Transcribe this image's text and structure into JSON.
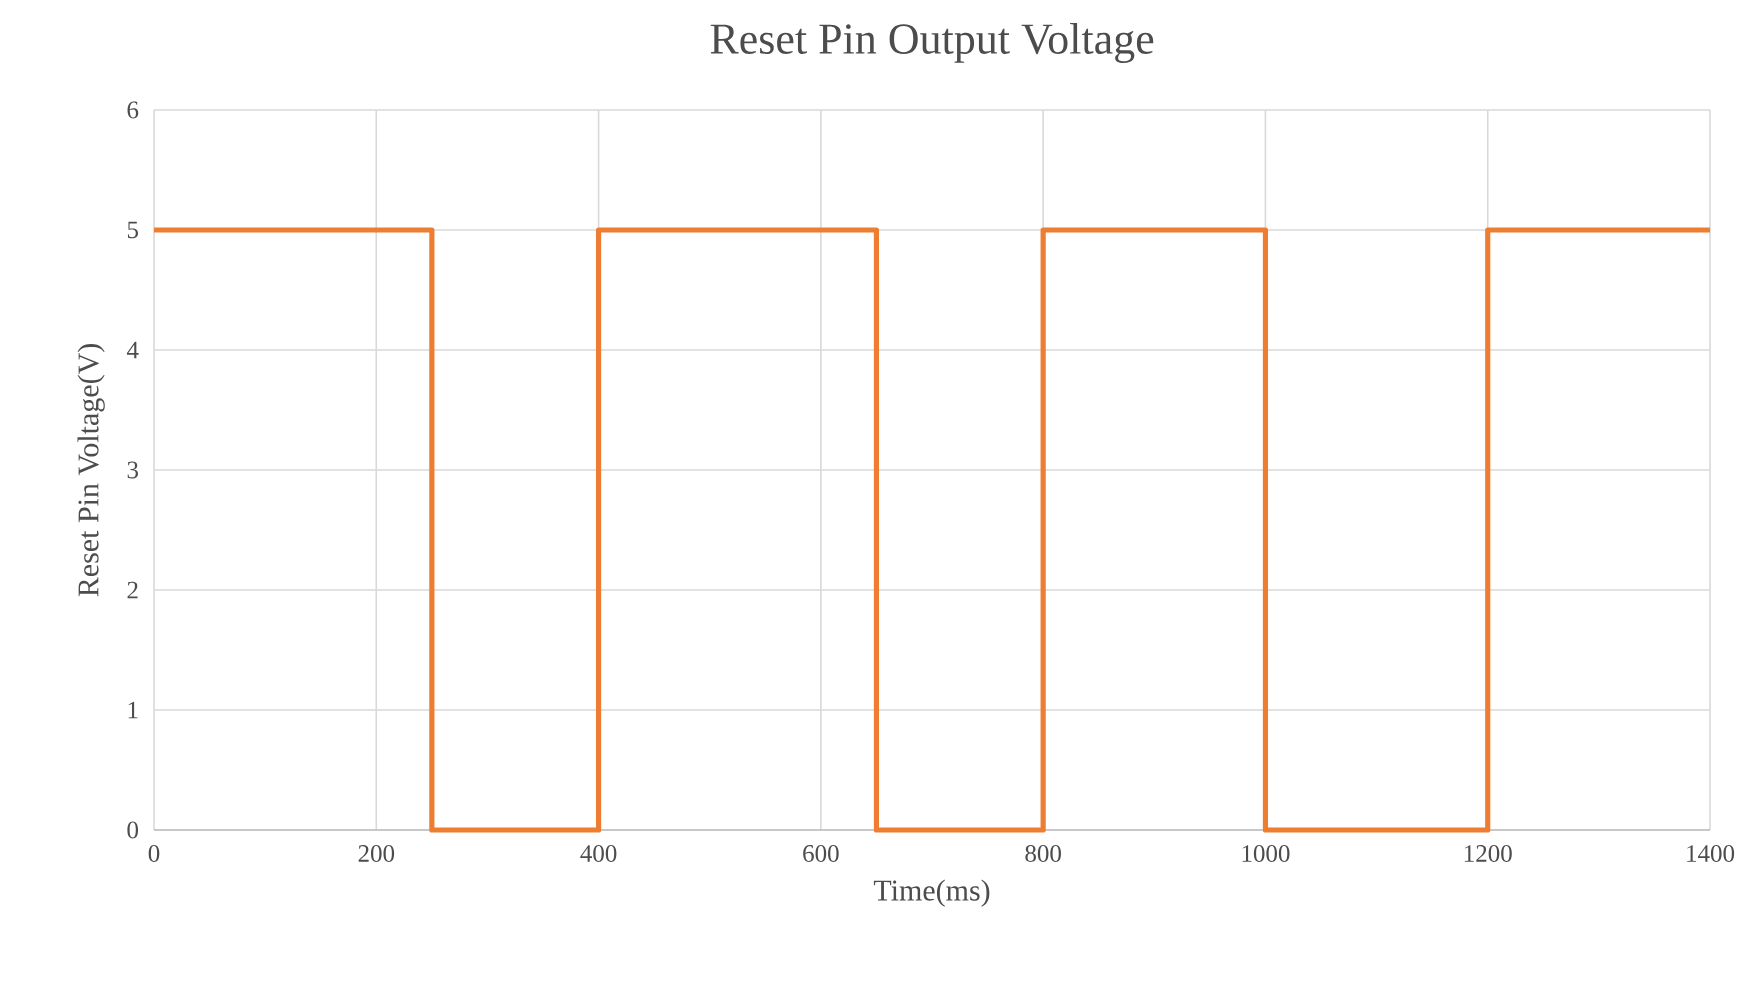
{
  "chart_data": {
    "type": "line",
    "title": "Reset Pin Output Voltage",
    "xlabel": "Time(ms)",
    "ylabel": "Reset Pin Voltage(V)",
    "x": [
      0,
      250,
      250,
      400,
      400,
      650,
      650,
      800,
      800,
      1000,
      1000,
      1200,
      1200,
      1400
    ],
    "series": [
      {
        "color": "#ed7d31",
        "values": [
          5,
          5,
          0,
          0,
          5,
          5,
          0,
          0,
          5,
          5,
          0,
          0,
          5,
          5
        ]
      }
    ],
    "xlim": [
      0,
      1400
    ],
    "ylim": [
      0,
      6
    ],
    "xticks": [
      0,
      200,
      400,
      600,
      800,
      1000,
      1200,
      1400
    ],
    "yticks": [
      0,
      1,
      2,
      3,
      4,
      5,
      6
    ],
    "grid": true,
    "marker": "none",
    "line_style": "solid"
  }
}
